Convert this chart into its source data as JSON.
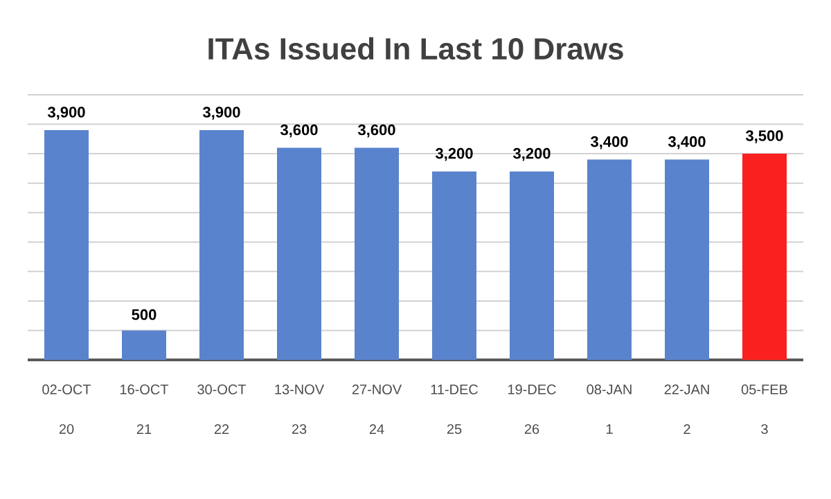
{
  "chart_data": {
    "type": "bar",
    "title": "ITAs Issued In Last 10 Draws",
    "categories": [
      "02-OCT",
      "16-OCT",
      "30-OCT",
      "13-NOV",
      "27-NOV",
      "11-DEC",
      "19-DEC",
      "08-JAN",
      "22-JAN",
      "05-FEB"
    ],
    "values": [
      3900,
      500,
      3900,
      3600,
      3600,
      3200,
      3200,
      3400,
      3400,
      3500
    ],
    "value_labels": [
      "3,900",
      "500",
      "3,900",
      "3,600",
      "3,600",
      "3,200",
      "3,200",
      "3,400",
      "3,400",
      "3,500"
    ],
    "colors": [
      "#5a83cd",
      "#5a83cd",
      "#5a83cd",
      "#5a83cd",
      "#5a83cd",
      "#5a83cd",
      "#5a83cd",
      "#5a83cd",
      "#5a83cd",
      "#fb2020"
    ],
    "annotations": [
      "20",
      "21",
      "22",
      "23",
      "24",
      "25",
      "26",
      "1",
      "2",
      "3"
    ],
    "ylim": [
      0,
      4500
    ],
    "yticks": [
      {
        "value": 0,
        "label": null
      },
      {
        "value": 500,
        "label": null
      },
      {
        "value": 1000,
        "label": null
      },
      {
        "value": 1500,
        "label": null
      },
      {
        "value": 2000,
        "label": null
      },
      {
        "value": 2500,
        "label": null
      },
      {
        "value": 3000,
        "label": null
      },
      {
        "value": 3500,
        "label": null
      },
      {
        "value": 4000,
        "label": null
      },
      {
        "value": 4500,
        "label": null
      }
    ],
    "grid": "y",
    "tick_labels": "x"
  }
}
